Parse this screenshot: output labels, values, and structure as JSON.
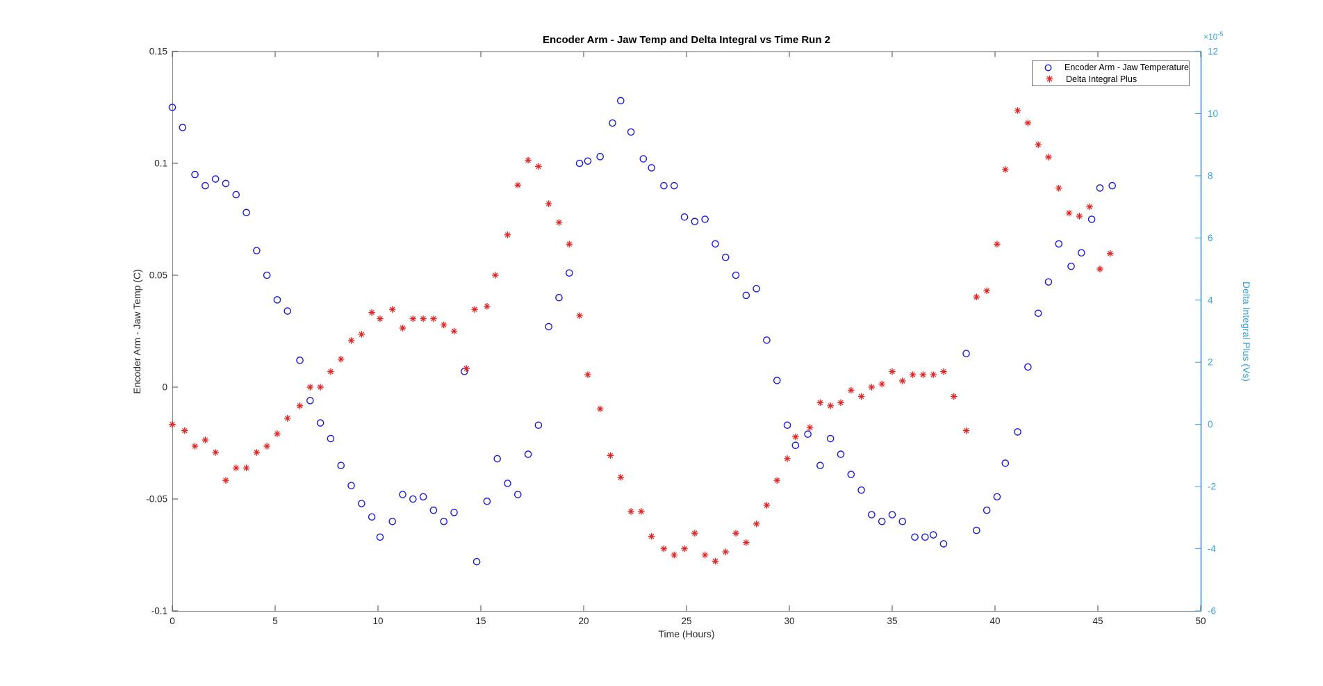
{
  "figure": {
    "title": "Encoder Arm - Jaw Temp and Delta Integral vs Time Run 2"
  },
  "legend": {
    "items": [
      {
        "label": "Encoder Arm - Jaw Temperature",
        "marker": "circle",
        "color": "#1c1cdb"
      },
      {
        "label": "Delta Integral Plus",
        "marker": "asterisk",
        "color": "#e32222"
      }
    ]
  },
  "chart_data": {
    "type": "scatter",
    "title": "Encoder Arm - Jaw Temp and Delta Integral vs Time Run 2",
    "xlabel": "Time (Hours)",
    "grid": false,
    "legend_position": "top-right",
    "x_axis": {
      "min": 0,
      "max": 50,
      "ticks": [
        0,
        5,
        10,
        15,
        20,
        25,
        30,
        35,
        40,
        45,
        50
      ]
    },
    "left_axis": {
      "label": "Encoder Arm - Jaw Temp (C)",
      "min": -0.1,
      "max": 0.15,
      "tick_values": [
        0.15,
        0.1,
        0.05,
        0,
        -0.05,
        -0.1
      ],
      "tick_labels": [
        "0.15",
        "0.1",
        "0.05",
        "0",
        "-0.05",
        "-0.1"
      ],
      "color": "#262626"
    },
    "right_axis": {
      "label": "Delta Integral Plus (Vs)",
      "min": -6,
      "max": 12,
      "tick_values": [
        12,
        10,
        8,
        6,
        4,
        2,
        0,
        -2,
        -4,
        -6
      ],
      "tick_labels": [
        "12",
        "10",
        "8",
        "6",
        "4",
        "2",
        "0",
        "-2",
        "-4",
        "-6"
      ],
      "multiplier_text": "×10",
      "multiplier_exp": "-5",
      "color": "#35a2dc"
    },
    "series": [
      {
        "name": "Encoder Arm - Jaw Temperature",
        "axis": "left",
        "marker": "circle",
        "color": "#1c1cdb",
        "points": [
          [
            0.0,
            0.125
          ],
          [
            0.5,
            0.116
          ],
          [
            1.1,
            0.095
          ],
          [
            1.6,
            0.09
          ],
          [
            2.1,
            0.093
          ],
          [
            2.6,
            0.091
          ],
          [
            3.1,
            0.086
          ],
          [
            3.6,
            0.078
          ],
          [
            4.1,
            0.061
          ],
          [
            4.6,
            0.05
          ],
          [
            5.1,
            0.039
          ],
          [
            5.6,
            0.034
          ],
          [
            6.2,
            0.012
          ],
          [
            6.7,
            -0.006
          ],
          [
            7.2,
            -0.016
          ],
          [
            7.7,
            -0.023
          ],
          [
            8.2,
            -0.035
          ],
          [
            8.7,
            -0.044
          ],
          [
            9.2,
            -0.052
          ],
          [
            9.7,
            -0.058
          ],
          [
            10.1,
            -0.067
          ],
          [
            10.7,
            -0.06
          ],
          [
            11.2,
            -0.048
          ],
          [
            11.7,
            -0.05
          ],
          [
            12.2,
            -0.049
          ],
          [
            12.7,
            -0.055
          ],
          [
            13.2,
            -0.06
          ],
          [
            13.7,
            -0.056
          ],
          [
            14.2,
            0.007
          ],
          [
            14.8,
            -0.078
          ],
          [
            15.3,
            -0.051
          ],
          [
            15.8,
            -0.032
          ],
          [
            16.3,
            -0.043
          ],
          [
            16.8,
            -0.048
          ],
          [
            17.3,
            -0.03
          ],
          [
            17.8,
            -0.017
          ],
          [
            18.3,
            0.027
          ],
          [
            18.8,
            0.04
          ],
          [
            19.3,
            0.051
          ],
          [
            19.8,
            0.1
          ],
          [
            20.2,
            0.101
          ],
          [
            20.8,
            0.103
          ],
          [
            21.4,
            0.118
          ],
          [
            21.8,
            0.128
          ],
          [
            22.3,
            0.114
          ],
          [
            22.9,
            0.102
          ],
          [
            23.3,
            0.098
          ],
          [
            23.9,
            0.09
          ],
          [
            24.4,
            0.09
          ],
          [
            24.9,
            0.076
          ],
          [
            25.4,
            0.074
          ],
          [
            25.9,
            0.075
          ],
          [
            26.4,
            0.064
          ],
          [
            26.9,
            0.058
          ],
          [
            27.4,
            0.05
          ],
          [
            27.9,
            0.041
          ],
          [
            28.4,
            0.044
          ],
          [
            28.9,
            0.021
          ],
          [
            29.4,
            0.003
          ],
          [
            29.9,
            -0.017
          ],
          [
            30.3,
            -0.026
          ],
          [
            30.9,
            -0.021
          ],
          [
            31.5,
            -0.035
          ],
          [
            32.0,
            -0.023
          ],
          [
            32.5,
            -0.03
          ],
          [
            33.0,
            -0.039
          ],
          [
            33.5,
            -0.046
          ],
          [
            34.0,
            -0.057
          ],
          [
            34.5,
            -0.06
          ],
          [
            35.0,
            -0.057
          ],
          [
            35.5,
            -0.06
          ],
          [
            36.1,
            -0.067
          ],
          [
            36.6,
            -0.067
          ],
          [
            37.0,
            -0.066
          ],
          [
            37.5,
            -0.07
          ],
          [
            38.6,
            0.015
          ],
          [
            39.1,
            -0.064
          ],
          [
            39.6,
            -0.055
          ],
          [
            40.1,
            -0.049
          ],
          [
            40.5,
            -0.034
          ],
          [
            41.1,
            -0.02
          ],
          [
            41.6,
            0.009
          ],
          [
            42.1,
            0.033
          ],
          [
            42.6,
            0.047
          ],
          [
            43.1,
            0.064
          ],
          [
            43.7,
            0.054
          ],
          [
            44.2,
            0.06
          ],
          [
            44.7,
            0.075
          ],
          [
            45.1,
            0.089
          ],
          [
            45.7,
            0.09
          ]
        ]
      },
      {
        "name": "Delta Integral Plus",
        "axis": "right",
        "marker": "asterisk",
        "color": "#e32222",
        "points": [
          [
            0.0,
            0.0
          ],
          [
            0.6,
            -0.2
          ],
          [
            1.1,
            -0.7
          ],
          [
            1.6,
            -0.5
          ],
          [
            2.1,
            -0.9
          ],
          [
            2.6,
            -1.8
          ],
          [
            3.1,
            -1.4
          ],
          [
            3.6,
            -1.4
          ],
          [
            4.1,
            -0.9
          ],
          [
            4.6,
            -0.7
          ],
          [
            5.1,
            -0.3
          ],
          [
            5.6,
            0.2
          ],
          [
            6.2,
            0.6
          ],
          [
            6.7,
            1.2
          ],
          [
            7.2,
            1.2
          ],
          [
            7.7,
            1.7
          ],
          [
            8.2,
            2.1
          ],
          [
            8.7,
            2.7
          ],
          [
            9.2,
            2.9
          ],
          [
            9.7,
            3.6
          ],
          [
            10.1,
            3.4
          ],
          [
            10.7,
            3.7
          ],
          [
            11.2,
            3.1
          ],
          [
            11.7,
            3.4
          ],
          [
            12.2,
            3.4
          ],
          [
            12.7,
            3.4
          ],
          [
            13.2,
            3.2
          ],
          [
            13.7,
            3.0
          ],
          [
            14.3,
            1.8
          ],
          [
            14.7,
            3.7
          ],
          [
            15.3,
            3.8
          ],
          [
            15.7,
            4.8
          ],
          [
            16.3,
            6.1
          ],
          [
            16.8,
            7.7
          ],
          [
            17.3,
            8.5
          ],
          [
            17.8,
            8.3
          ],
          [
            18.3,
            7.1
          ],
          [
            18.8,
            6.5
          ],
          [
            19.3,
            5.8
          ],
          [
            19.8,
            3.5
          ],
          [
            20.2,
            1.6
          ],
          [
            20.8,
            0.5
          ],
          [
            21.3,
            -1.0
          ],
          [
            21.8,
            -1.7
          ],
          [
            22.3,
            -2.8
          ],
          [
            22.8,
            -2.8
          ],
          [
            23.3,
            -3.6
          ],
          [
            23.9,
            -4.0
          ],
          [
            24.4,
            -4.2
          ],
          [
            24.9,
            -4.0
          ],
          [
            25.4,
            -3.5
          ],
          [
            25.9,
            -4.2
          ],
          [
            26.4,
            -4.4
          ],
          [
            26.9,
            -4.1
          ],
          [
            27.4,
            -3.5
          ],
          [
            27.9,
            -3.8
          ],
          [
            28.4,
            -3.2
          ],
          [
            28.9,
            -2.6
          ],
          [
            29.4,
            -1.8
          ],
          [
            29.9,
            -1.1
          ],
          [
            30.3,
            -0.4
          ],
          [
            31.0,
            -0.1
          ],
          [
            31.5,
            0.7
          ],
          [
            32.0,
            0.6
          ],
          [
            32.5,
            0.7
          ],
          [
            33.0,
            1.1
          ],
          [
            33.5,
            0.9
          ],
          [
            34.0,
            1.2
          ],
          [
            34.5,
            1.3
          ],
          [
            35.0,
            1.7
          ],
          [
            35.5,
            1.4
          ],
          [
            36.0,
            1.6
          ],
          [
            36.5,
            1.6
          ],
          [
            37.0,
            1.6
          ],
          [
            37.5,
            1.7
          ],
          [
            38.0,
            0.9
          ],
          [
            38.6,
            -0.2
          ],
          [
            39.1,
            4.1
          ],
          [
            39.6,
            4.3
          ],
          [
            40.1,
            5.8
          ],
          [
            40.5,
            8.2
          ],
          [
            41.1,
            10.1
          ],
          [
            41.6,
            9.7
          ],
          [
            42.1,
            9.0
          ],
          [
            42.6,
            8.6
          ],
          [
            43.1,
            7.6
          ],
          [
            43.6,
            6.8
          ],
          [
            44.1,
            6.7
          ],
          [
            44.6,
            7.0
          ],
          [
            45.1,
            5.0
          ],
          [
            45.6,
            5.5
          ]
        ]
      }
    ]
  },
  "colors": {
    "background": "#ffffff",
    "box": "#8a8a8a",
    "tick": "#444444",
    "tick_label": "#262626",
    "temperature_series": "#1c1cdb",
    "delta_series": "#e32222",
    "right_axis": "#35a2dc"
  }
}
